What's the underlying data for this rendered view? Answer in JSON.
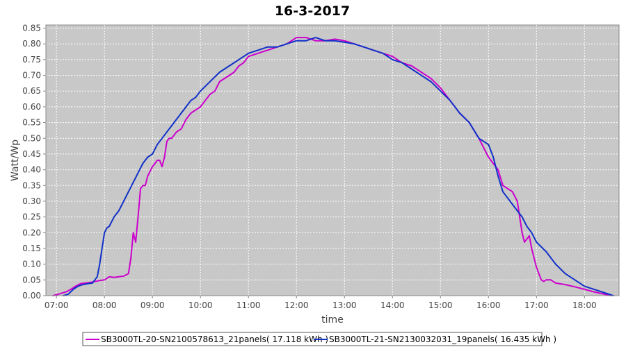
{
  "chart_data": {
    "type": "line",
    "title": "16-3-2017",
    "xlabel": "time",
    "ylabel": "Watt/Wp",
    "xlim": [
      6.78,
      18.72
    ],
    "ylim": [
      0.0,
      0.86
    ],
    "grid": true,
    "legend_placement": "bottom",
    "x_ticks": [
      {
        "value": 7,
        "label": "07:00"
      },
      {
        "value": 8,
        "label": "08:00"
      },
      {
        "value": 9,
        "label": "09:00"
      },
      {
        "value": 10,
        "label": "10:00"
      },
      {
        "value": 11,
        "label": "11:00"
      },
      {
        "value": 12,
        "label": "12:00"
      },
      {
        "value": 13,
        "label": "13:00"
      },
      {
        "value": 14,
        "label": "14:00"
      },
      {
        "value": 15,
        "label": "15:00"
      },
      {
        "value": 16,
        "label": "16:00"
      },
      {
        "value": 17,
        "label": "17:00"
      },
      {
        "value": 18,
        "label": "18:00"
      }
    ],
    "y_ticks": [
      {
        "value": 0.0,
        "label": "0.00"
      },
      {
        "value": 0.05,
        "label": "0.05"
      },
      {
        "value": 0.1,
        "label": "0.10"
      },
      {
        "value": 0.15,
        "label": "0.15"
      },
      {
        "value": 0.2,
        "label": "0.20"
      },
      {
        "value": 0.25,
        "label": "0.25"
      },
      {
        "value": 0.3,
        "label": "0.30"
      },
      {
        "value": 0.35,
        "label": "0.35"
      },
      {
        "value": 0.4,
        "label": "0.40"
      },
      {
        "value": 0.45,
        "label": "0.45"
      },
      {
        "value": 0.5,
        "label": "0.50"
      },
      {
        "value": 0.55,
        "label": "0.55"
      },
      {
        "value": 0.6,
        "label": "0.60"
      },
      {
        "value": 0.65,
        "label": "0.65"
      },
      {
        "value": 0.7,
        "label": "0.70"
      },
      {
        "value": 0.75,
        "label": "0.75"
      },
      {
        "value": 0.8,
        "label": "0.80"
      },
      {
        "value": 0.85,
        "label": "0.85"
      }
    ],
    "series": [
      {
        "name": "SB3000TL-20-SN2100578613_21panels( 17.118 kWh )",
        "color": "#cc00cc",
        "x": [
          6.93,
          7.05,
          7.2,
          7.3,
          7.4,
          7.5,
          7.6,
          7.7,
          7.8,
          7.9,
          8.0,
          8.1,
          8.2,
          8.3,
          8.4,
          8.5,
          8.55,
          8.6,
          8.65,
          8.7,
          8.75,
          8.8,
          8.85,
          8.9,
          9.0,
          9.1,
          9.15,
          9.2,
          9.25,
          9.3,
          9.35,
          9.4,
          9.5,
          9.6,
          9.7,
          9.8,
          9.9,
          10.0,
          10.1,
          10.2,
          10.3,
          10.4,
          10.5,
          10.6,
          10.7,
          10.8,
          10.9,
          11.0,
          11.2,
          11.4,
          11.6,
          11.8,
          12.0,
          12.2,
          12.4,
          12.6,
          12.8,
          13.0,
          13.2,
          13.4,
          13.6,
          13.8,
          14.0,
          14.2,
          14.4,
          14.6,
          14.8,
          15.0,
          15.2,
          15.4,
          15.6,
          15.8,
          16.0,
          16.1,
          16.2,
          16.3,
          16.4,
          16.5,
          16.6,
          16.7,
          16.75,
          16.8,
          16.85,
          16.9,
          16.95,
          17.0,
          17.1,
          17.15,
          17.2,
          17.3,
          17.4,
          17.6,
          17.8,
          18.0,
          18.2,
          18.4,
          18.55
        ],
        "values": [
          0.0,
          0.005,
          0.012,
          0.02,
          0.03,
          0.038,
          0.04,
          0.042,
          0.045,
          0.048,
          0.05,
          0.06,
          0.058,
          0.06,
          0.062,
          0.07,
          0.12,
          0.2,
          0.17,
          0.25,
          0.34,
          0.35,
          0.35,
          0.38,
          0.41,
          0.43,
          0.43,
          0.41,
          0.44,
          0.49,
          0.5,
          0.5,
          0.52,
          0.53,
          0.56,
          0.58,
          0.59,
          0.6,
          0.62,
          0.64,
          0.65,
          0.68,
          0.69,
          0.7,
          0.71,
          0.73,
          0.74,
          0.76,
          0.77,
          0.78,
          0.79,
          0.8,
          0.82,
          0.82,
          0.81,
          0.81,
          0.815,
          0.81,
          0.8,
          0.79,
          0.78,
          0.77,
          0.76,
          0.74,
          0.73,
          0.71,
          0.69,
          0.66,
          0.62,
          0.58,
          0.55,
          0.5,
          0.44,
          0.42,
          0.4,
          0.35,
          0.34,
          0.33,
          0.3,
          0.2,
          0.17,
          0.18,
          0.19,
          0.15,
          0.12,
          0.09,
          0.05,
          0.045,
          0.05,
          0.05,
          0.04,
          0.035,
          0.028,
          0.02,
          0.012,
          0.005,
          0.0
        ]
      },
      {
        "name": "SB3000TL-21-SN2130032031_19panels( 16.435 kWh )",
        "color": "#1030c8",
        "x": [
          7.15,
          7.25,
          7.35,
          7.45,
          7.55,
          7.65,
          7.75,
          7.85,
          7.9,
          7.95,
          8.0,
          8.05,
          8.1,
          8.2,
          8.3,
          8.4,
          8.5,
          8.6,
          8.7,
          8.8,
          8.9,
          9.0,
          9.1,
          9.2,
          9.3,
          9.4,
          9.5,
          9.6,
          9.7,
          9.8,
          9.9,
          10.0,
          10.2,
          10.4,
          10.6,
          10.8,
          11.0,
          11.2,
          11.4,
          11.6,
          11.8,
          12.0,
          12.2,
          12.4,
          12.6,
          12.8,
          13.0,
          13.2,
          13.4,
          13.6,
          13.8,
          14.0,
          14.2,
          14.4,
          14.6,
          14.8,
          15.0,
          15.2,
          15.4,
          15.6,
          15.8,
          16.0,
          16.1,
          16.2,
          16.3,
          16.4,
          16.5,
          16.6,
          16.7,
          16.8,
          16.9,
          17.0,
          17.2,
          17.4,
          17.6,
          17.8,
          18.0,
          18.2,
          18.4,
          18.6
        ],
        "values": [
          0.0,
          0.005,
          0.02,
          0.03,
          0.035,
          0.038,
          0.04,
          0.06,
          0.1,
          0.15,
          0.2,
          0.215,
          0.22,
          0.25,
          0.27,
          0.3,
          0.33,
          0.36,
          0.39,
          0.42,
          0.44,
          0.45,
          0.48,
          0.5,
          0.52,
          0.54,
          0.56,
          0.58,
          0.6,
          0.62,
          0.63,
          0.65,
          0.68,
          0.71,
          0.73,
          0.75,
          0.77,
          0.78,
          0.79,
          0.79,
          0.8,
          0.81,
          0.81,
          0.82,
          0.81,
          0.81,
          0.805,
          0.8,
          0.79,
          0.78,
          0.77,
          0.75,
          0.74,
          0.72,
          0.7,
          0.68,
          0.65,
          0.62,
          0.58,
          0.55,
          0.5,
          0.48,
          0.44,
          0.38,
          0.33,
          0.31,
          0.29,
          0.27,
          0.25,
          0.22,
          0.2,
          0.17,
          0.14,
          0.1,
          0.07,
          0.05,
          0.03,
          0.02,
          0.01,
          0.0
        ]
      }
    ]
  }
}
